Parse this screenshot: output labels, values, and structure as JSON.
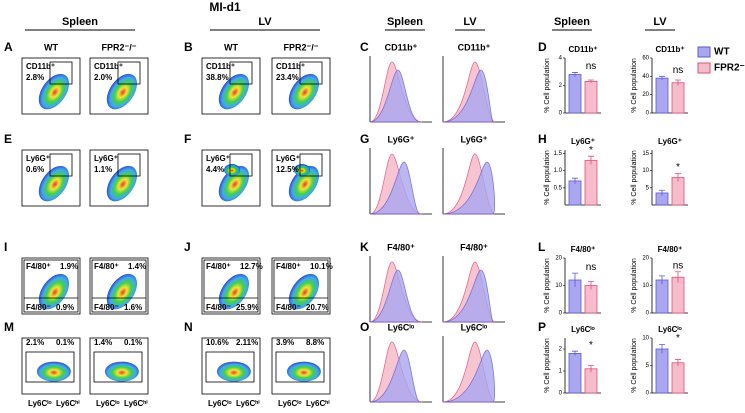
{
  "header": {
    "title": "MI-d1",
    "groups": [
      "Spleen",
      "LV",
      "Spleen",
      "LV",
      "Spleen",
      "LV"
    ]
  },
  "legend": [
    {
      "name": "WT",
      "color": "#aaa6f0",
      "edge": "#5b5bd6"
    },
    {
      "name": "FPR2⁻/⁻",
      "color": "#f6bccb",
      "edge": "#e0507a"
    }
  ],
  "flow": [
    {
      "letter": "A",
      "plots": [
        {
          "title": "WT",
          "labels": [
            "CD11b⁺",
            "2.8%"
          ]
        },
        {
          "title": "FPR2⁻/⁻",
          "labels": [
            "CD11b⁺",
            "2.0%"
          ]
        }
      ]
    },
    {
      "letter": "B",
      "plots": [
        {
          "title": "WT",
          "labels": [
            "CD11b⁺",
            "38.8%"
          ]
        },
        {
          "title": "FPR2⁻/⁻",
          "labels": [
            "CD11b⁺",
            "23.4%"
          ]
        }
      ]
    },
    {
      "letter": "E",
      "plots": [
        {
          "labels": [
            "Ly6G⁺",
            "0.6%"
          ]
        },
        {
          "labels": [
            "Ly6G⁺",
            "1.1%"
          ]
        }
      ]
    },
    {
      "letter": "F",
      "plots": [
        {
          "labels": [
            "Ly6G⁺",
            "4.4%"
          ]
        },
        {
          "labels": [
            "Ly6G⁺",
            "12.5%"
          ]
        }
      ]
    },
    {
      "letter": "I",
      "plots": [
        {
          "labels": [
            "F4/80⁺",
            "1.9%",
            "F4/80⁻",
            "0.9%"
          ]
        },
        {
          "labels": [
            "F4/80⁺",
            "1.4%",
            "F4/80⁻",
            "1.6%"
          ]
        }
      ]
    },
    {
      "letter": "J",
      "plots": [
        {
          "labels": [
            "F4/80⁺",
            "12.7%",
            "F4/80⁻",
            "25.9%"
          ]
        },
        {
          "labels": [
            "F4/80⁺",
            "10.1%",
            "F4/80⁻",
            "20.7%"
          ]
        }
      ]
    },
    {
      "letter": "M",
      "plots": [
        {
          "labels": [
            "2.1%",
            "0.1%",
            "Ly6Cˡᵒ",
            "Ly6Cʰⁱ"
          ]
        },
        {
          "labels": [
            "1.4%",
            "0.1%",
            "Ly6Cˡᵒ",
            "Ly6Cʰⁱ"
          ]
        }
      ]
    },
    {
      "letter": "N",
      "plots": [
        {
          "labels": [
            "10.6%",
            "2.11%",
            "Ly6Cˡᵒ",
            "Ly6Cʰⁱ"
          ]
        },
        {
          "labels": [
            "3.9%",
            "8.8%",
            "Ly6Cˡᵒ",
            "Ly6Cʰⁱ"
          ]
        }
      ]
    }
  ],
  "hist": [
    {
      "letter": "C",
      "titles": [
        "CD11b⁺",
        "CD11b⁺"
      ]
    },
    {
      "letter": "G",
      "titles": [
        "Ly6G⁺",
        "Ly6G⁺"
      ]
    },
    {
      "letter": "K",
      "titles": [
        "F4/80⁺",
        "F4/80⁺"
      ]
    },
    {
      "letter": "O",
      "titles": [
        "Ly6Cˡᵒ",
        "Ly6Cˡᵒ"
      ]
    }
  ],
  "bar_ylabel": "% Cell population",
  "bars": [
    {
      "letter": "D",
      "plots": [
        {
          "title": "CD11b⁺",
          "values": [
            2.8,
            2.3
          ],
          "errors": [
            0.15,
            0.1
          ],
          "ylim": [
            0,
            4
          ],
          "yticks": [
            0,
            2,
            4
          ],
          "annotation": "ns"
        },
        {
          "title": "CD11b⁺",
          "values": [
            38,
            33
          ],
          "errors": [
            2,
            3
          ],
          "ylim": [
            0,
            60
          ],
          "yticks": [
            0,
            20,
            40,
            60
          ],
          "annotation": "ns"
        }
      ]
    },
    {
      "letter": "H",
      "plots": [
        {
          "title": "Ly6G⁺",
          "values": [
            0.7,
            1.3
          ],
          "errors": [
            0.08,
            0.12
          ],
          "ylim": [
            0,
            1.6
          ],
          "yticks": [
            0.5,
            {
              "value": 1,
              "label": "1.0"
            },
            1.5
          ],
          "annotation": "*"
        },
        {
          "title": "Ly6G⁺",
          "values": [
            3.5,
            8
          ],
          "errors": [
            0.8,
            1.2
          ],
          "ylim": [
            0,
            16
          ],
          "yticks": [
            5,
            10,
            15
          ],
          "annotation": "*"
        }
      ]
    },
    {
      "letter": "L",
      "plots": [
        {
          "title": "F4/80⁺",
          "values": [
            12,
            10
          ],
          "errors": [
            2.5,
            1.5
          ],
          "ylim": [
            0,
            20
          ],
          "yticks": [
            0,
            10,
            20
          ],
          "annotation": "ns"
        },
        {
          "title": "F4/80⁺",
          "values": [
            12,
            13
          ],
          "errors": [
            1.5,
            2
          ],
          "ylim": [
            0,
            20
          ],
          "yticks": [
            0,
            10,
            20
          ],
          "annotation": "ns"
        }
      ]
    },
    {
      "letter": "P",
      "plots": [
        {
          "title": "Ly6Cˡᵒ",
          "values": [
            1.8,
            1.1
          ],
          "errors": [
            0.1,
            0.15
          ],
          "ylim": [
            0,
            2.5
          ],
          "yticks": [
            0,
            1,
            2
          ],
          "annotation": "*"
        },
        {
          "title": "Ly6Cˡᵒ",
          "values": [
            8,
            5.5
          ],
          "errors": [
            0.8,
            0.6
          ],
          "ylim": [
            0,
            10
          ],
          "yticks": [
            0,
            5,
            10
          ],
          "annotation": "*"
        }
      ]
    }
  ]
}
